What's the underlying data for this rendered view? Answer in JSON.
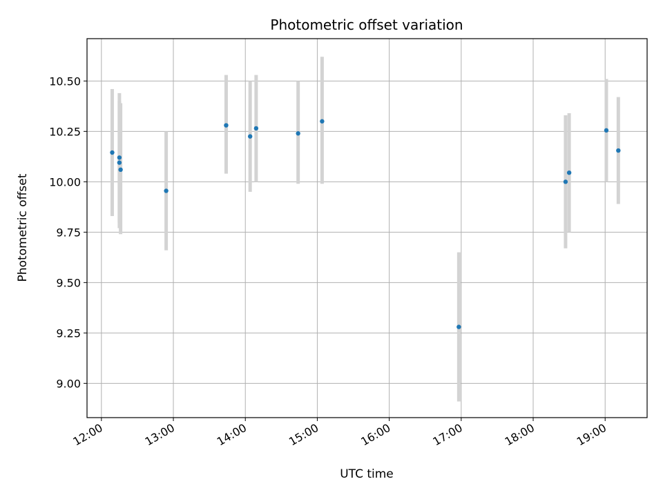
{
  "chart_data": {
    "type": "scatter",
    "title": "Photometric offset variation",
    "xlabel": "UTC time",
    "ylabel": "Photometric offset",
    "x_ticks": [
      "12:00",
      "13:00",
      "14:00",
      "15:00",
      "16:00",
      "17:00",
      "18:00",
      "19:00"
    ],
    "y_ticks": [
      9.0,
      9.25,
      9.5,
      9.75,
      10.0,
      10.25,
      10.5
    ],
    "y_tick_labels": [
      "9.00",
      "9.25",
      "9.50",
      "9.75",
      "10.00",
      "10.25",
      "10.50"
    ],
    "xlim": [
      "11:48",
      "19:35"
    ],
    "ylim": [
      8.83,
      10.71
    ],
    "grid": true,
    "marker_color": "#1f77b4",
    "errorbar_color": "#d3d3d3",
    "points": [
      {
        "x": "12:09",
        "y": 10.145,
        "err_low": 9.83,
        "err_high": 10.46
      },
      {
        "x": "12:15",
        "y": 10.12,
        "err_low": 9.8,
        "err_high": 10.44
      },
      {
        "x": "12:15",
        "y": 10.095,
        "err_low": 9.77,
        "err_high": 10.4
      },
      {
        "x": "12:16",
        "y": 10.06,
        "err_low": 9.74,
        "err_high": 10.39
      },
      {
        "x": "12:54",
        "y": 9.955,
        "err_low": 9.66,
        "err_high": 10.25
      },
      {
        "x": "13:44",
        "y": 10.28,
        "err_low": 10.04,
        "err_high": 10.53
      },
      {
        "x": "14:04",
        "y": 10.225,
        "err_low": 9.95,
        "err_high": 10.5
      },
      {
        "x": "14:09",
        "y": 10.265,
        "err_low": 10.0,
        "err_high": 10.53
      },
      {
        "x": "14:44",
        "y": 10.24,
        "err_low": 9.99,
        "err_high": 10.5
      },
      {
        "x": "15:04",
        "y": 10.3,
        "err_low": 9.99,
        "err_high": 10.62
      },
      {
        "x": "16:58",
        "y": 9.28,
        "err_low": 8.91,
        "err_high": 9.65
      },
      {
        "x": "18:27",
        "y": 10.0,
        "err_low": 9.67,
        "err_high": 10.33
      },
      {
        "x": "18:30",
        "y": 10.045,
        "err_low": 9.75,
        "err_high": 10.34
      },
      {
        "x": "19:01",
        "y": 10.255,
        "err_low": 10.0,
        "err_high": 10.51
      },
      {
        "x": "19:11",
        "y": 10.155,
        "err_low": 9.89,
        "err_high": 10.42
      }
    ]
  }
}
